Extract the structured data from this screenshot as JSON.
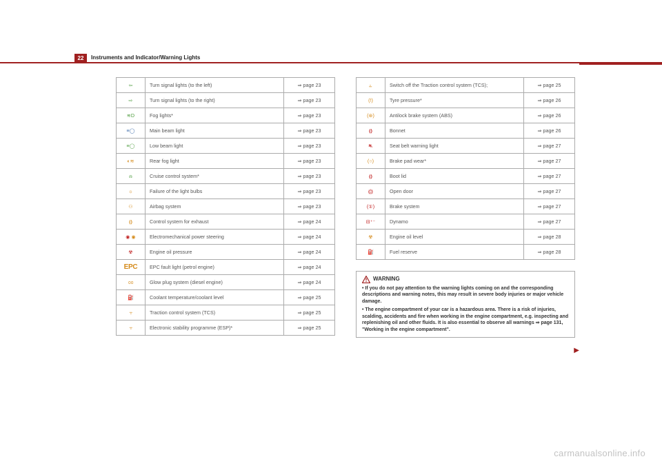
{
  "header": {
    "pageNumber": "22",
    "title": "Instruments and Indicator/Warning Lights"
  },
  "leftTable": [
    {
      "iconClass": "icon-green",
      "iconGlyph": "⇦",
      "label": "Turn signal lights (to the left)",
      "ref": "⇒ page 23"
    },
    {
      "iconClass": "icon-green",
      "iconGlyph": "⇨",
      "label": "Turn signal lights (to the right)",
      "ref": "⇒ page 23"
    },
    {
      "iconClass": "icon-green",
      "iconGlyph": "≋D",
      "label": "Fog lights*",
      "ref": "⇒ page 23"
    },
    {
      "iconClass": "icon-blue",
      "iconGlyph": "≡◯",
      "label": "Main beam light",
      "ref": "⇒ page 23"
    },
    {
      "iconClass": "icon-green",
      "iconGlyph": "≡◯",
      "label": "Low beam light",
      "ref": "⇒ page 23"
    },
    {
      "iconClass": "icon-amber",
      "iconGlyph": "◐≋",
      "label": "Rear fog light",
      "ref": "⇒ page 23"
    },
    {
      "iconClass": "icon-green",
      "iconGlyph": "⍾",
      "label": "Cruise control system*",
      "ref": "⇒ page 23"
    },
    {
      "iconClass": "icon-amber",
      "iconGlyph": "☼",
      "label": "Failure of the light bulbs",
      "ref": "⇒ page 23"
    },
    {
      "iconClass": "icon-amber",
      "iconGlyph": "⚇",
      "label": "Airbag system",
      "ref": "⇒ page 23"
    },
    {
      "iconClass": "icon-amber",
      "iconGlyph": "⟬⟭",
      "label": "Control system for exhaust",
      "ref": "⇒ page 24"
    },
    {
      "iconClass": "dual",
      "iconGlyph": "",
      "label": "Electromechanical power steering",
      "ref": "⇒ page 24"
    },
    {
      "iconClass": "icon-red",
      "iconGlyph": "☢",
      "label": "Engine oil pressure",
      "ref": "⇒ page 24"
    },
    {
      "iconClass": "epc",
      "iconGlyph": "EPC",
      "label": "EPC fault light (petrol engine)",
      "ref": "⇒ page 24"
    },
    {
      "iconClass": "icon-amber",
      "iconGlyph": "൦൦",
      "label": "Glow plug system (diesel engine)",
      "ref": "⇒ page 24"
    },
    {
      "iconClass": "icon-red",
      "iconGlyph": "⛽",
      "label": "Coolant temperature/coolant level",
      "ref": "⇒ page 25"
    },
    {
      "iconClass": "icon-amber",
      "iconGlyph": "⥾",
      "label": "Traction control system (TCS)",
      "ref": "⇒ page 25"
    },
    {
      "iconClass": "icon-amber",
      "iconGlyph": "⥾",
      "label": "Electronic stability programme (ESP)*",
      "ref": "⇒ page 25"
    }
  ],
  "rightTable": [
    {
      "iconClass": "icon-amber",
      "iconGlyph": "⥿",
      "label": "Switch off the Traction control system (TCS);",
      "ref": "⇒ page 25"
    },
    {
      "iconClass": "icon-amber",
      "iconGlyph": "(!)",
      "label": "Tyre pressure*",
      "ref": "⇒ page 26"
    },
    {
      "iconClass": "icon-amber",
      "iconGlyph": "(⊛)",
      "label": "Antilock brake system (ABS)",
      "ref": "⇒ page 26"
    },
    {
      "iconClass": "icon-red",
      "iconGlyph": "⟬⟭",
      "label": "Bonnet",
      "ref": "⇒ page 26"
    },
    {
      "iconClass": "icon-red",
      "iconGlyph": "⛐",
      "label": "Seat belt warning light",
      "ref": "⇒ page 27"
    },
    {
      "iconClass": "icon-amber",
      "iconGlyph": "(○)",
      "label": "Brake pad wear*",
      "ref": "⇒ page 27"
    },
    {
      "iconClass": "icon-red",
      "iconGlyph": "⟬⟭",
      "label": "Boot lid",
      "ref": "⇒ page 27"
    },
    {
      "iconClass": "icon-red",
      "iconGlyph": "⟬¦⟭",
      "label": "Open door",
      "ref": "⇒ page 27"
    },
    {
      "iconClass": "icon-red",
      "iconGlyph": "(①)",
      "label": "Brake system",
      "ref": "⇒ page 27"
    },
    {
      "iconClass": "icon-red",
      "iconGlyph": "⊟⁺⁻",
      "label": "Dynamo",
      "ref": "⇒ page 27"
    },
    {
      "iconClass": "icon-amber",
      "iconGlyph": "☢",
      "label": "Engine oil level",
      "ref": "⇒ page 28"
    },
    {
      "iconClass": "icon-amber",
      "iconGlyph": "⛽",
      "label": "Fuel reserve",
      "ref": "⇒ page 28"
    }
  ],
  "warning": {
    "title": "WARNING",
    "bullet1": "If you do not pay attention to the warning lights coming on and the corresponding descriptions and warning notes, this may result in severe body injuries or major vehicle damage.",
    "bullet2": "The engine compartment of your car is a hazardous area. There is a risk of injuries, scalding, accidents and fire when working in the engine compartment, e.g. inspecting and replenishing oil and other fluids. It is also essential to observe all warnings ⇒ page 131, \"Working in the engine compartment\"."
  },
  "watermark": "carmanualsonline.info",
  "continueGlyph": "▶"
}
